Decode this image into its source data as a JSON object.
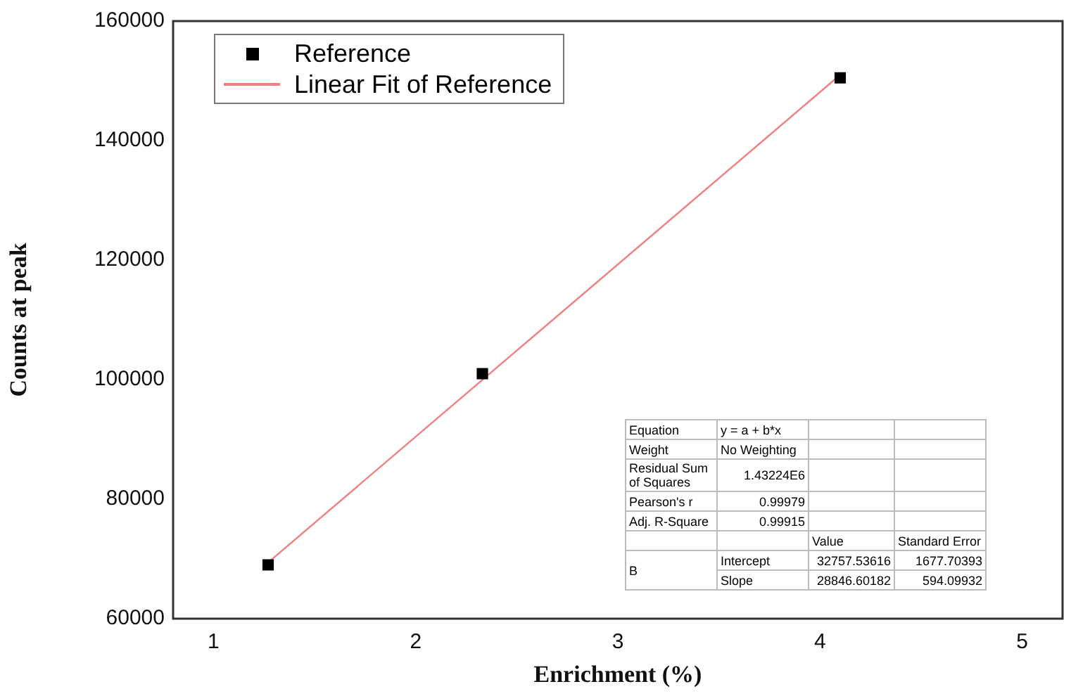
{
  "chart_data": {
    "type": "scatter",
    "xlabel": "Enrichment (%)",
    "ylabel": "Counts at peak",
    "xlim": [
      0.8,
      5.2
    ],
    "xticks": [
      1,
      2,
      3,
      4,
      5
    ],
    "ylim": [
      60000,
      160000
    ],
    "yticks": [
      60000,
      80000,
      100000,
      120000,
      140000,
      160000
    ],
    "grid": false,
    "legend": "top left",
    "marker": "square",
    "series": [
      {
        "name": "Reference",
        "color": "#000000",
        "x": [
          1.27,
          2.33,
          4.1
        ],
        "values": [
          69000,
          101000,
          150500
        ]
      },
      {
        "name": "Linear Fit of Reference",
        "type": "line",
        "color": "#f08080",
        "marker": "none",
        "x": [
          1.27,
          4.1
        ],
        "values": [
          69400,
          151000
        ]
      }
    ],
    "annotations": [
      "Equation",
      "y = a + b*x",
      "Weight",
      "No Weighting",
      "Residual Sum of Squares",
      "1.43224E6",
      "Pearson's r",
      "0.99979",
      "Adj. R-Square",
      "0.99915",
      "Value",
      "Standard Error",
      "B",
      "Intercept",
      "32757.53616",
      "1677.70393",
      "Slope",
      "28846.60182",
      "594.09932"
    ]
  }
}
